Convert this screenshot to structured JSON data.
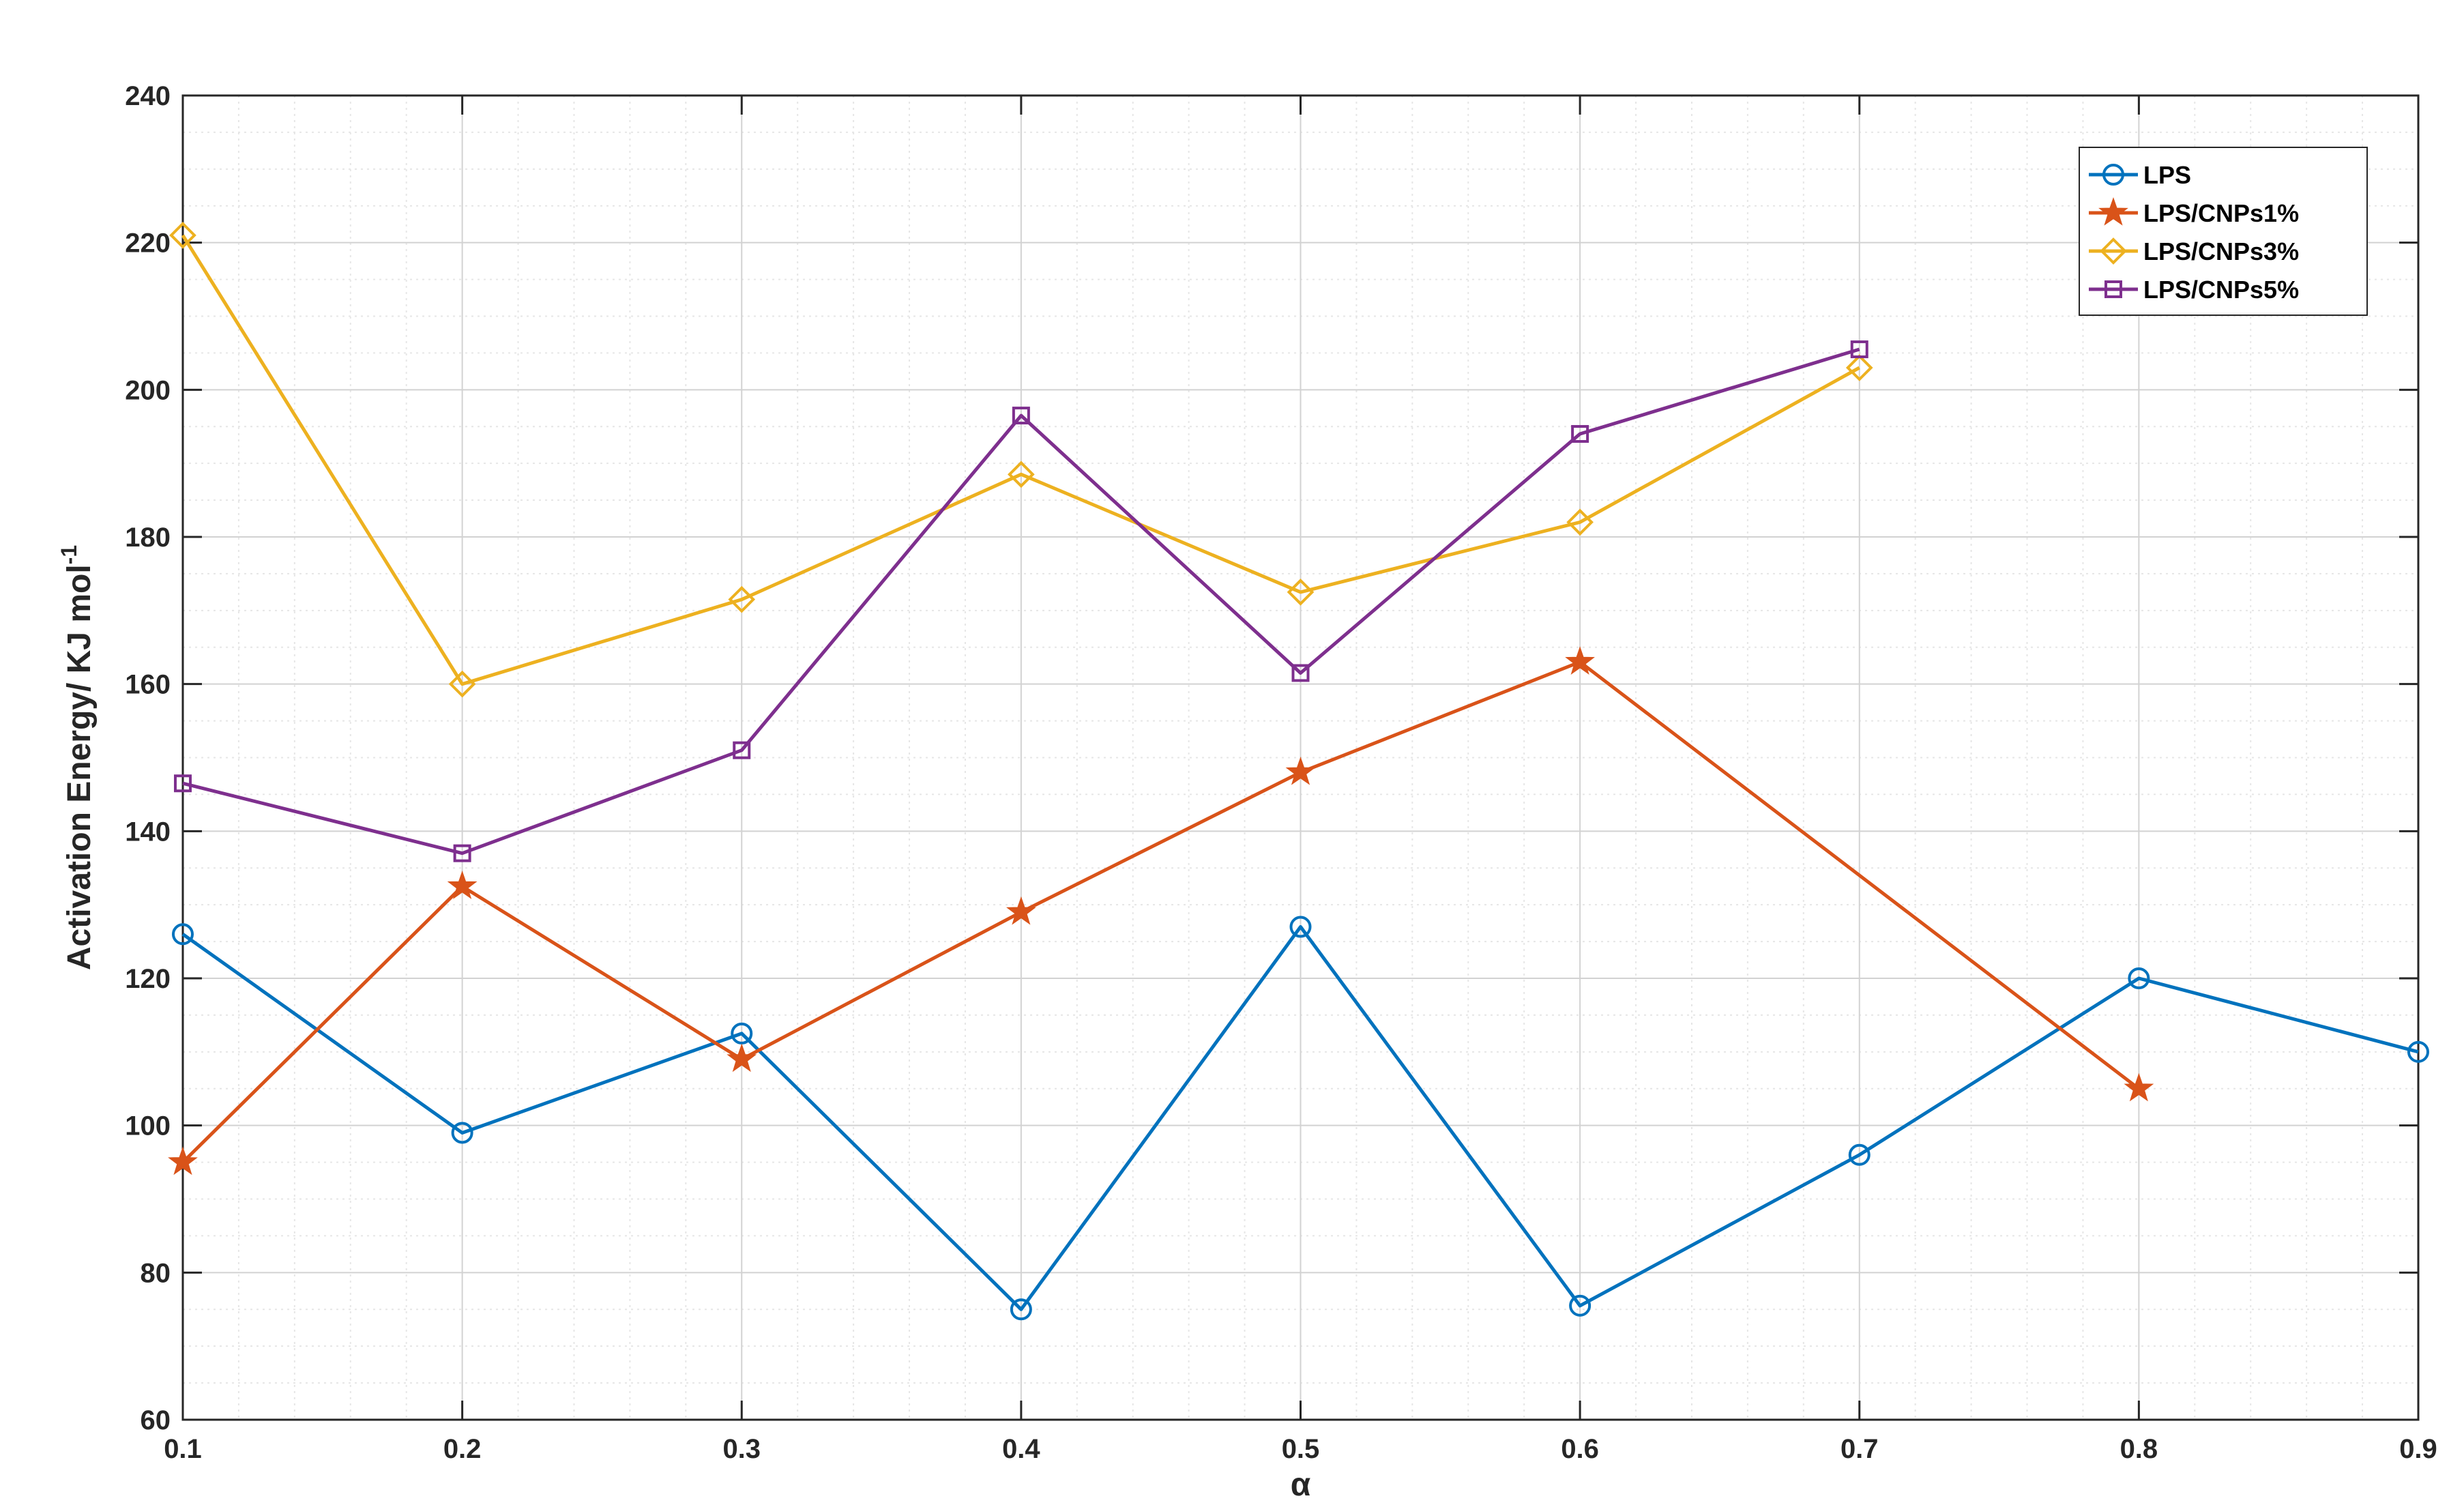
{
  "chart_data": {
    "type": "line",
    "title": "",
    "xlabel": "α",
    "ylabel": "Activation Energy/ KJ mol",
    "ylabel_sup": "-1",
    "xlim": [
      0.1,
      0.9
    ],
    "ylim": [
      60,
      240
    ],
    "x_ticks": [
      "0.1",
      "0.2",
      "0.3",
      "0.4",
      "0.5",
      "0.6",
      "0.7",
      "0.8",
      "0.9"
    ],
    "y_ticks": [
      "60",
      "80",
      "100",
      "120",
      "140",
      "160",
      "180",
      "200",
      "220",
      "240"
    ],
    "grid": true,
    "minor_grid": true,
    "legend_position": "top-right",
    "series": [
      {
        "name": "LPS",
        "color": "#0072BD",
        "marker": "circle",
        "x": [
          0.1,
          0.2,
          0.3,
          0.4,
          0.5,
          0.6,
          0.7,
          0.8,
          0.9
        ],
        "y": [
          126,
          99,
          112.5,
          75,
          127,
          75.5,
          96,
          120,
          110
        ]
      },
      {
        "name": "LPS/CNPs1%",
        "color": "#D95319",
        "marker": "star",
        "x": [
          0.1,
          0.2,
          0.3,
          0.4,
          0.5,
          0.6,
          0.8
        ],
        "y": [
          95,
          132.5,
          109,
          129,
          148,
          163,
          105
        ]
      },
      {
        "name": "LPS/CNPs3%",
        "color": "#EDB120",
        "marker": "diamond",
        "x": [
          0.1,
          0.2,
          0.3,
          0.4,
          0.5,
          0.6,
          0.7
        ],
        "y": [
          221,
          160,
          171.5,
          188.5,
          172.5,
          182,
          203
        ]
      },
      {
        "name": "LPS/CNPs5%",
        "color": "#7E2F8E",
        "marker": "square",
        "x": [
          0.1,
          0.2,
          0.3,
          0.4,
          0.5,
          0.6,
          0.7
        ],
        "y": [
          146.5,
          137,
          151,
          196.5,
          161.5,
          194,
          205.5
        ]
      }
    ]
  }
}
